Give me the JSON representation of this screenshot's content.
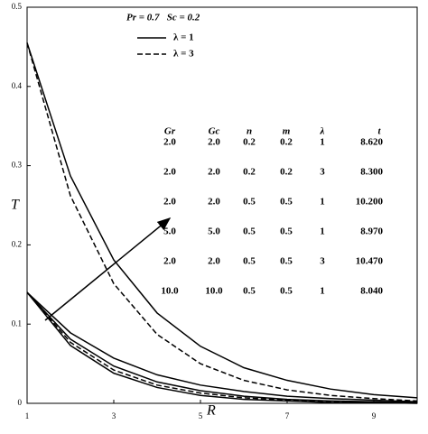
{
  "chart_data": {
    "type": "line",
    "annotation": "Pr = 0.7   Sc = 0.2",
    "xlabel": "R",
    "ylabel": "T",
    "x": [
      1,
      2,
      3,
      4,
      5,
      6,
      7,
      8,
      9,
      10
    ],
    "series": [
      {
        "dashed": false,
        "color": "#000000",
        "values": [
          0.455,
          0.287,
          0.181,
          0.114,
          0.072,
          0.045,
          0.029,
          0.018,
          0.011,
          0.007
        ]
      },
      {
        "dashed": true,
        "color": "#000000",
        "values": [
          0.455,
          0.262,
          0.151,
          0.087,
          0.05,
          0.029,
          0.017,
          0.01,
          0.006,
          0.003
        ]
      },
      {
        "dashed": false,
        "color": "#000000",
        "values": [
          0.14,
          0.089,
          0.057,
          0.036,
          0.023,
          0.015,
          0.009,
          0.006,
          0.004,
          0.002
        ]
      },
      {
        "dashed": false,
        "color": "#000000",
        "values": [
          0.14,
          0.081,
          0.047,
          0.027,
          0.016,
          0.009,
          0.005,
          0.003,
          0.002,
          0.001
        ]
      },
      {
        "dashed": true,
        "color": "#000000",
        "values": [
          0.14,
          0.077,
          0.042,
          0.023,
          0.013,
          0.007,
          0.004,
          0.002,
          0.001,
          0.001
        ]
      },
      {
        "dashed": false,
        "color": "#000000",
        "values": [
          0.14,
          0.073,
          0.038,
          0.02,
          0.01,
          0.005,
          0.003,
          0.001,
          0.001,
          0.0
        ]
      }
    ],
    "legend": [
      {
        "label": "λ = 1",
        "dashed": false
      },
      {
        "label": "λ = 3",
        "dashed": true
      }
    ],
    "table": {
      "columns": [
        "Gr",
        "Gc",
        "n",
        "m",
        "λ",
        "t"
      ],
      "rows": [
        [
          "2.0",
          "2.0",
          "0.2",
          "0.2",
          "1",
          "8.620"
        ],
        [
          "2.0",
          "2.0",
          "0.2",
          "0.2",
          "3",
          "8.300"
        ],
        [
          "2.0",
          "2.0",
          "0.5",
          "0.5",
          "1",
          "10.200"
        ],
        [
          "5.0",
          "5.0",
          "0.5",
          "0.5",
          "1",
          "8.970"
        ],
        [
          "2.0",
          "2.0",
          "0.5",
          "0.5",
          "3",
          "10.470"
        ],
        [
          "10.0",
          "10.0",
          "0.5",
          "0.5",
          "1",
          "8.040"
        ]
      ]
    },
    "xlim": [
      1,
      10
    ],
    "ylim": [
      0,
      0.5
    ],
    "xticks": [
      1,
      3,
      5,
      7,
      9
    ],
    "yticks": [
      0,
      0.1,
      0.2,
      0.3,
      0.4,
      0.5
    ]
  }
}
